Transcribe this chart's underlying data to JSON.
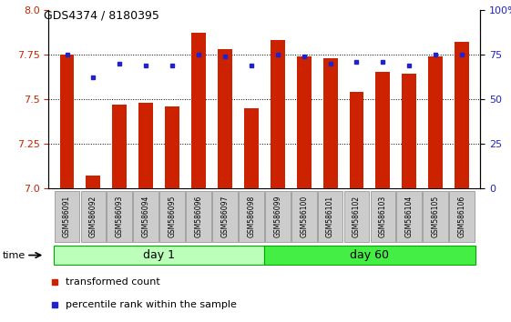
{
  "title": "GDS4374 / 8180395",
  "samples": [
    "GSM586091",
    "GSM586092",
    "GSM586093",
    "GSM586094",
    "GSM586095",
    "GSM586096",
    "GSM586097",
    "GSM586098",
    "GSM586099",
    "GSM586100",
    "GSM586101",
    "GSM586102",
    "GSM586103",
    "GSM586104",
    "GSM586105",
    "GSM586106"
  ],
  "groups": [
    "day 1",
    "day 1",
    "day 1",
    "day 1",
    "day 1",
    "day 1",
    "day 1",
    "day 1",
    "day 60",
    "day 60",
    "day 60",
    "day 60",
    "day 60",
    "day 60",
    "day 60",
    "day 60"
  ],
  "bar_values": [
    7.75,
    7.07,
    7.47,
    7.48,
    7.46,
    7.87,
    7.78,
    7.45,
    7.83,
    7.74,
    7.73,
    7.54,
    7.65,
    7.64,
    7.74,
    7.82
  ],
  "dot_values": [
    75,
    62,
    70,
    69,
    69,
    75,
    74,
    69,
    75,
    74,
    70,
    71,
    71,
    69,
    75,
    75
  ],
  "bar_color": "#cc2200",
  "dot_color": "#2222cc",
  "ylim_left": [
    7.0,
    8.0
  ],
  "ylim_right": [
    0,
    100
  ],
  "yticks_left": [
    7.0,
    7.25,
    7.5,
    7.75,
    8.0
  ],
  "yticks_right": [
    0,
    25,
    50,
    75,
    100
  ],
  "ytick_labels_right": [
    "0",
    "25",
    "50",
    "75",
    "100%"
  ],
  "group_colors": {
    "day 1": "#bbffbb",
    "day 60": "#44ee44"
  },
  "legend_items": [
    {
      "label": "transformed count",
      "color": "#cc2200"
    },
    {
      "label": "percentile rank within the sample",
      "color": "#2222cc"
    }
  ],
  "bar_width": 0.55
}
